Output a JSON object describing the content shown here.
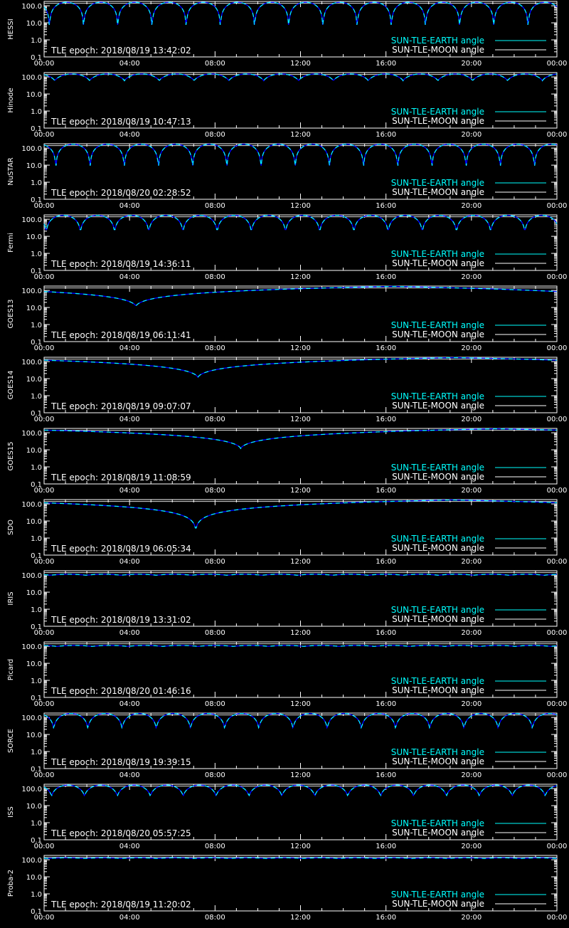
{
  "figure": {
    "time_ticks": [
      "00:00",
      "04:00",
      "08:00",
      "12:00",
      "16:00",
      "20:00",
      "00:00"
    ],
    "y_ticks": [
      "100.0",
      "10.0",
      "1.0",
      "0.1"
    ],
    "legend": [
      "SUN-TLE-EARTH angle",
      "SUN-TLE-MOON angle"
    ],
    "colors": {
      "background": "#000000",
      "axes": "#ffffff",
      "sun_earth": "#00ffff",
      "sun_moon": "#ffffff",
      "occultation": "#0000ff"
    }
  },
  "chart_data": [
    {
      "type": "line",
      "ylabel": "HESSI",
      "epoch": "TLE epoch: 2018/08/19 13:42:02",
      "yscale": "log",
      "ylim": [
        0.1,
        180
      ],
      "xlim": [
        0,
        24
      ],
      "series": [
        {
          "name": "SUN-TLE-EARTH angle",
          "model": {
            "kind": "orbit",
            "period_h": 1.6,
            "max": 160,
            "min": 2.0,
            "phase_h": 0.25
          }
        },
        {
          "name": "SUN-TLE-MOON angle",
          "model": {
            "kind": "flat",
            "value": 140
          }
        }
      ]
    },
    {
      "type": "line",
      "ylabel": "Hinode",
      "epoch": "TLE epoch: 2018/08/19 10:47:13",
      "yscale": "log",
      "ylim": [
        0.1,
        180
      ],
      "xlim": [
        0,
        24
      ],
      "series": [
        {
          "name": "SUN-TLE-EARTH angle",
          "model": {
            "kind": "orbit",
            "period_h": 1.63,
            "max": 150,
            "min": 60,
            "phase_h": 0.5
          }
        },
        {
          "name": "SUN-TLE-MOON angle",
          "model": {
            "kind": "flat",
            "value": 140
          }
        }
      ]
    },
    {
      "type": "line",
      "ylabel": "NuSTAR",
      "epoch": "TLE epoch: 2018/08/20 02:28:52",
      "yscale": "log",
      "ylim": [
        0.1,
        180
      ],
      "xlim": [
        0,
        24
      ],
      "series": [
        {
          "name": "SUN-TLE-EARTH angle",
          "model": {
            "kind": "orbit",
            "period_h": 1.6,
            "max": 170,
            "min": 3.5,
            "phase_h": 0.55
          }
        },
        {
          "name": "SUN-TLE-MOON angle",
          "model": {
            "kind": "flat",
            "value": 140
          }
        }
      ]
    },
    {
      "type": "line",
      "ylabel": "Fermi",
      "epoch": "TLE epoch: 2018/08/19 14:36:11",
      "yscale": "log",
      "ylim": [
        0.1,
        180
      ],
      "xlim": [
        0,
        24
      ],
      "series": [
        {
          "name": "SUN-TLE-EARTH angle",
          "model": {
            "kind": "orbit",
            "period_h": 1.6,
            "max": 170,
            "min": 15,
            "phase_h": 0.1
          }
        },
        {
          "name": "SUN-TLE-MOON angle",
          "model": {
            "kind": "flat",
            "value": 140
          }
        }
      ]
    },
    {
      "type": "line",
      "ylabel": "GOES13",
      "epoch": "TLE epoch: 2018/08/19 06:11:41",
      "yscale": "log",
      "ylim": [
        0.1,
        180
      ],
      "xlim": [
        0,
        24
      ],
      "series": [
        {
          "name": "SUN-TLE-EARTH angle",
          "model": {
            "kind": "geo",
            "center_h": 4.3,
            "max": 172,
            "min": 12
          }
        },
        {
          "name": "SUN-TLE-MOON angle",
          "model": {
            "kind": "flat",
            "value": 140
          }
        }
      ]
    },
    {
      "type": "line",
      "ylabel": "GOES14",
      "epoch": "TLE epoch: 2018/08/19 09:07:07",
      "yscale": "log",
      "ylim": [
        0.1,
        180
      ],
      "xlim": [
        0,
        24
      ],
      "series": [
        {
          "name": "SUN-TLE-EARTH angle",
          "model": {
            "kind": "geo",
            "center_h": 7.2,
            "max": 172,
            "min": 12
          }
        },
        {
          "name": "SUN-TLE-MOON angle",
          "model": {
            "kind": "flat",
            "value": 140
          }
        }
      ]
    },
    {
      "type": "line",
      "ylabel": "GOES15",
      "epoch": "TLE epoch: 2018/08/19 11:08:59",
      "yscale": "log",
      "ylim": [
        0.1,
        180
      ],
      "xlim": [
        0,
        24
      ],
      "series": [
        {
          "name": "SUN-TLE-EARTH angle",
          "model": {
            "kind": "geo",
            "center_h": 9.2,
            "max": 172,
            "min": 12
          }
        },
        {
          "name": "SUN-TLE-MOON angle",
          "model": {
            "kind": "flat",
            "value": 140
          }
        }
      ]
    },
    {
      "type": "line",
      "ylabel": "SDO",
      "epoch": "TLE epoch: 2018/08/19 06:05:34",
      "yscale": "log",
      "ylim": [
        0.1,
        180
      ],
      "xlim": [
        0,
        24
      ],
      "series": [
        {
          "name": "SUN-TLE-EARTH angle",
          "model": {
            "kind": "geo",
            "center_h": 7.1,
            "max": 172,
            "min": 2.5
          }
        },
        {
          "name": "SUN-TLE-MOON angle",
          "model": {
            "kind": "flat",
            "value": 140
          }
        }
      ]
    },
    {
      "type": "line",
      "ylabel": "IRIS",
      "epoch": "TLE epoch: 2018/08/19 13:31:02",
      "yscale": "log",
      "ylim": [
        0.1,
        180
      ],
      "xlim": [
        0,
        24
      ],
      "series": [
        {
          "name": "SUN-TLE-EARTH angle",
          "model": {
            "kind": "orbit",
            "period_h": 1.65,
            "max": 112,
            "min": 98,
            "phase_h": 0.3
          }
        },
        {
          "name": "SUN-TLE-MOON angle",
          "model": {
            "kind": "flat",
            "value": 140
          }
        }
      ]
    },
    {
      "type": "line",
      "ylabel": "Picard",
      "epoch": "TLE epoch: 2018/08/20 01:46:16",
      "yscale": "log",
      "ylim": [
        0.1,
        180
      ],
      "xlim": [
        0,
        24
      ],
      "series": [
        {
          "name": "SUN-TLE-EARTH angle",
          "model": {
            "kind": "orbit",
            "period_h": 1.65,
            "max": 112,
            "min": 98,
            "phase_h": 0.6
          }
        },
        {
          "name": "SUN-TLE-MOON angle",
          "model": {
            "kind": "flat",
            "value": 140
          }
        }
      ]
    },
    {
      "type": "line",
      "ylabel": "SORCE",
      "epoch": "TLE epoch: 2018/08/19 19:39:15",
      "yscale": "log",
      "ylim": [
        0.1,
        180
      ],
      "xlim": [
        0,
        24
      ],
      "series": [
        {
          "name": "SUN-TLE-EARTH angle",
          "model": {
            "kind": "orbit",
            "period_h": 1.6,
            "max": 170,
            "min": 20,
            "phase_h": 0.45
          }
        },
        {
          "name": "SUN-TLE-MOON angle",
          "model": {
            "kind": "flat",
            "value": 140
          }
        }
      ]
    },
    {
      "type": "line",
      "ylabel": "ISS",
      "epoch": "TLE epoch: 2018/08/20 05:57:25",
      "yscale": "log",
      "ylim": [
        0.1,
        180
      ],
      "xlim": [
        0,
        24
      ],
      "series": [
        {
          "name": "SUN-TLE-EARTH angle",
          "model": {
            "kind": "orbit",
            "period_h": 1.54,
            "max": 160,
            "min": 35,
            "phase_h": 0.35
          }
        },
        {
          "name": "SUN-TLE-MOON angle",
          "model": {
            "kind": "flat",
            "value": 140
          }
        }
      ]
    },
    {
      "type": "line",
      "ylabel": "Proba-2",
      "epoch": "TLE epoch: 2018/08/19 11:20:02",
      "yscale": "log",
      "ylim": [
        0.1,
        180
      ],
      "xlim": [
        0,
        24
      ],
      "series": [
        {
          "name": "SUN-TLE-EARTH angle",
          "model": {
            "kind": "orbit",
            "period_h": 1.7,
            "max": 130,
            "min": 118,
            "phase_h": 0.2
          }
        },
        {
          "name": "SUN-TLE-MOON angle",
          "model": {
            "kind": "flat",
            "value": 140
          }
        }
      ]
    }
  ]
}
